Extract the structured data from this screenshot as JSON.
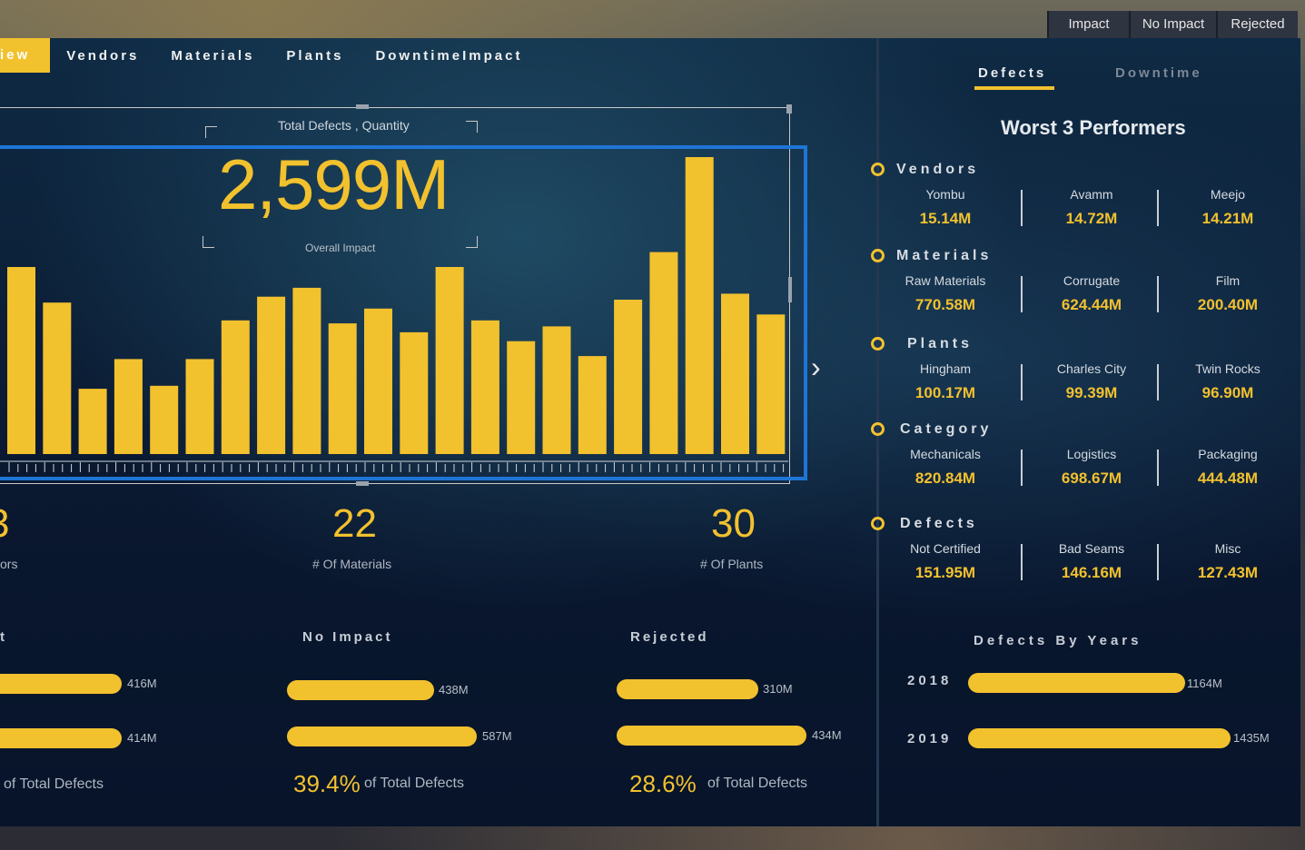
{
  "filters": [
    {
      "label": "Impact"
    },
    {
      "label": "No Impact"
    },
    {
      "label": "Rejected"
    }
  ],
  "nav": {
    "active": "iew",
    "items": [
      "Vendors",
      "Materials",
      "Plants",
      "DowntimeImpact"
    ]
  },
  "chart": {
    "kpi_title": "Total Defects , Quantity",
    "kpi_value": "2,599M",
    "kpi_sub": "Overall Impact"
  },
  "chart_data": {
    "type": "bar",
    "values": [
      63,
      51,
      22,
      32,
      23,
      32,
      45,
      53,
      56,
      44,
      49,
      41,
      63,
      45,
      38,
      43,
      33,
      52,
      68,
      100,
      54,
      47
    ],
    "title": "",
    "xlabel": "",
    "ylabel": ""
  },
  "counts": [
    {
      "value": "3",
      "label": "ors"
    },
    {
      "value": "22",
      "label": "# Of Materials"
    },
    {
      "value": "30",
      "label": "# Of Plants"
    }
  ],
  "impact_sections": [
    {
      "title": "t",
      "bars": [
        {
          "value": "416M"
        },
        {
          "value": "414M"
        }
      ],
      "pct": "",
      "pct_label": "of Total Defects"
    },
    {
      "title": "No Impact",
      "bars": [
        {
          "value": "438M"
        },
        {
          "value": "587M"
        }
      ],
      "pct": "39.4%",
      "pct_label": "of Total Defects"
    },
    {
      "title": "Rejected",
      "bars": [
        {
          "value": "310M"
        },
        {
          "value": "434M"
        }
      ],
      "pct": "28.6%",
      "pct_label": "of Total Defects"
    }
  ],
  "right": {
    "tabs": {
      "active": "Defects",
      "inactive": "Downtime"
    },
    "worst_title": "Worst 3 Performers",
    "categories": [
      {
        "title": "Vendors",
        "items": [
          {
            "name": "Yombu",
            "value": "15.14M"
          },
          {
            "name": "Avamm",
            "value": "14.72M"
          },
          {
            "name": "Meejo",
            "value": "14.21M"
          }
        ]
      },
      {
        "title": "Materials",
        "items": [
          {
            "name": "Raw Materials",
            "value": "770.58M"
          },
          {
            "name": "Corrugate",
            "value": "624.44M"
          },
          {
            "name": "Film",
            "value": "200.40M"
          }
        ]
      },
      {
        "title": "Plants",
        "items": [
          {
            "name": "Hingham",
            "value": "100.17M"
          },
          {
            "name": "Charles City",
            "value": "99.39M"
          },
          {
            "name": "Twin Rocks",
            "value": "96.90M"
          }
        ]
      },
      {
        "title": "Category",
        "items": [
          {
            "name": "Mechanicals",
            "value": "820.84M"
          },
          {
            "name": "Logistics",
            "value": "698.67M"
          },
          {
            "name": "Packaging",
            "value": "444.48M"
          }
        ]
      },
      {
        "title": "Defects",
        "items": [
          {
            "name": "Not Certified",
            "value": "151.95M"
          },
          {
            "name": "Bad Seams",
            "value": "146.16M"
          },
          {
            "name": "Misc",
            "value": "127.43M"
          }
        ]
      }
    ],
    "years_title": "Defects By Years",
    "years": [
      {
        "year": "2018",
        "value": "1164M"
      },
      {
        "year": "2019",
        "value": "1435M"
      }
    ]
  },
  "colors": {
    "accent": "#f2c12e",
    "selection": "#1f75d6"
  }
}
